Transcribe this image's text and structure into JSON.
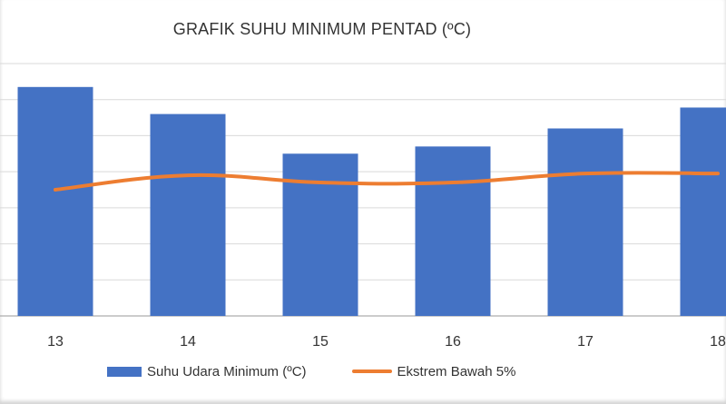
{
  "chart_data": {
    "type": "bar",
    "title": "GRAFIK SUHU MINIMUM PENTAD (ºC)",
    "categories": [
      "13",
      "14",
      "15",
      "16",
      "17",
      "18"
    ],
    "ylim": [
      0,
      7
    ],
    "grid": true,
    "legend_position": "bottom",
    "series": [
      {
        "name": "Suhu Udara Minimum (ºC)",
        "type": "bar",
        "color": "#4472c4",
        "values": [
          6.35,
          5.6,
          4.5,
          4.7,
          5.2,
          5.78
        ]
      },
      {
        "name": "Ekstrem Bawah  5%",
        "type": "line",
        "color": "#ed7d31",
        "values": [
          3.5,
          3.9,
          3.7,
          3.7,
          3.95,
          3.95
        ]
      }
    ]
  }
}
